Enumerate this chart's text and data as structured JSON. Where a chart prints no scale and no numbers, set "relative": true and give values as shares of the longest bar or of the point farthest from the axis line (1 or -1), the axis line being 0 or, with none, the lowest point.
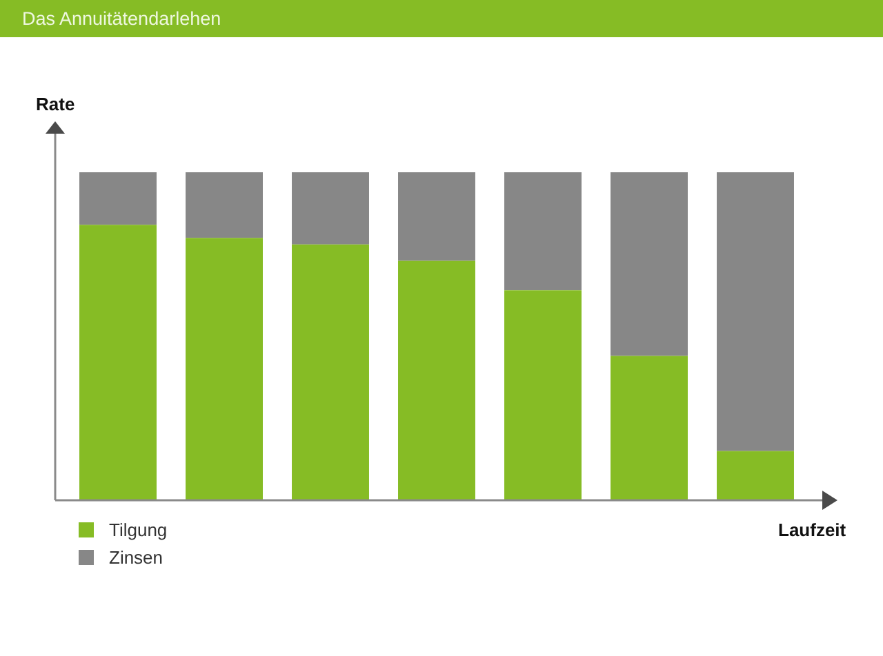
{
  "chart_data": {
    "type": "bar",
    "title": "Das Annuitätendarlehen",
    "xlabel": "Laufzeit",
    "ylabel": "Rate",
    "categories": [
      null,
      null,
      null,
      null,
      null,
      null,
      null
    ],
    "stacked": true,
    "relative": true,
    "legend": "bottom left",
    "series": [
      {
        "name": "Tilgung",
        "color": "#86bc25",
        "values": [
          0.84,
          0.8,
          0.78,
          0.73,
          0.64,
          0.44,
          0.15
        ]
      },
      {
        "name": "Zinsen",
        "color": "#878787",
        "values": [
          0.16,
          0.2,
          0.22,
          0.27,
          0.36,
          0.56,
          0.85
        ]
      }
    ]
  }
}
